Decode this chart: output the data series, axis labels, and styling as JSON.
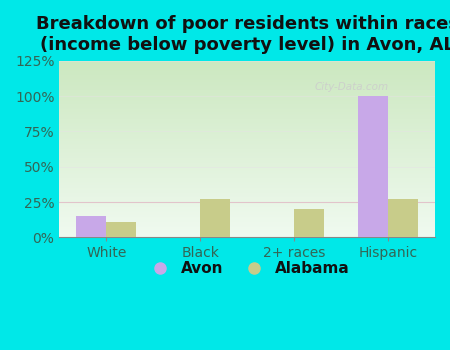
{
  "title": "Breakdown of poor residents within races\n(income below poverty level) in Avon, AL",
  "categories": [
    "White",
    "Black",
    "2+ races",
    "Hispanic"
  ],
  "avon_values": [
    15,
    0,
    0,
    100
  ],
  "alabama_values": [
    11,
    27,
    20,
    27
  ],
  "avon_color": "#c8a8e8",
  "alabama_color": "#c8cc8a",
  "ylim": [
    0,
    125
  ],
  "yticks": [
    0,
    25,
    50,
    75,
    100,
    125
  ],
  "ytick_labels": [
    "0%",
    "25%",
    "50%",
    "75%",
    "100%",
    "125%"
  ],
  "background_outer": "#00e8e8",
  "title_fontsize": 13,
  "axis_label_fontsize": 10,
  "legend_fontsize": 11,
  "bar_width": 0.32,
  "gridline_color": "#e8c8d8",
  "watermark": "City-Data.com",
  "gradient_top": "#cce8c0",
  "gradient_bottom": "#f0faf0"
}
